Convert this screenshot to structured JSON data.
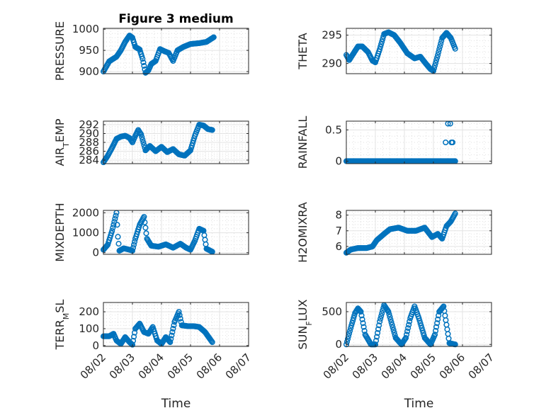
{
  "figure_title": "Figure 3 medium",
  "chart_data": [
    {
      "type": "scatter",
      "title": "Figure 3 medium",
      "ylabel_parts": [
        {
          "text": "PRESSURE",
          "sub": false
        }
      ],
      "xlabel": "",
      "xlim": [
        0,
        5
      ],
      "ylim": [
        895,
        1002
      ],
      "yticks": [
        900,
        950,
        1000
      ],
      "yticklabels": [
        "900",
        "950",
        "1000"
      ],
      "xticks": [
        0,
        1,
        2,
        3,
        4,
        5
      ],
      "xticklabels": [],
      "grid": true,
      "color": "#0072BD",
      "marker": "circle",
      "keyframes": [
        [
          0.0,
          900
        ],
        [
          0.1,
          912
        ],
        [
          0.2,
          924
        ],
        [
          0.45,
          935
        ],
        [
          0.6,
          950
        ],
        [
          0.75,
          970
        ],
        [
          0.9,
          985
        ],
        [
          1.0,
          980
        ],
        [
          1.1,
          958
        ],
        [
          1.25,
          952
        ],
        [
          1.35,
          930
        ],
        [
          1.45,
          897
        ],
        [
          1.55,
          903
        ],
        [
          1.65,
          918
        ],
        [
          1.8,
          925
        ],
        [
          1.95,
          953
        ],
        [
          2.1,
          948
        ],
        [
          2.25,
          944
        ],
        [
          2.4,
          925
        ],
        [
          2.55,
          950
        ],
        [
          2.75,
          958
        ],
        [
          3.0,
          965
        ],
        [
          3.3,
          967
        ],
        [
          3.55,
          970
        ],
        [
          3.8,
          981
        ]
      ]
    },
    {
      "type": "scatter",
      "title": "",
      "ylabel_parts": [
        {
          "text": "THETA",
          "sub": false
        }
      ],
      "xlabel": "",
      "xlim": [
        0,
        5
      ],
      "ylim": [
        288.2,
        296.2
      ],
      "yticks": [
        290,
        295
      ],
      "yticklabels": [
        "290",
        "295"
      ],
      "xticks": [
        0,
        1,
        2,
        3,
        4,
        5
      ],
      "xticklabels": [],
      "grid": true,
      "color": "#0072BD",
      "marker": "circle",
      "keyframes": [
        [
          0.0,
          291.5
        ],
        [
          0.1,
          290.6
        ],
        [
          0.25,
          291.8
        ],
        [
          0.4,
          293.0
        ],
        [
          0.55,
          293.0
        ],
        [
          0.75,
          292.0
        ],
        [
          0.9,
          290.5
        ],
        [
          1.0,
          290.2
        ],
        [
          1.15,
          292.5
        ],
        [
          1.3,
          295.2
        ],
        [
          1.45,
          295.5
        ],
        [
          1.65,
          295.0
        ],
        [
          1.85,
          293.7
        ],
        [
          2.1,
          291.8
        ],
        [
          2.35,
          290.9
        ],
        [
          2.55,
          291.2
        ],
        [
          2.75,
          289.9
        ],
        [
          2.9,
          289.0
        ],
        [
          3.0,
          288.7
        ],
        [
          3.15,
          291.5
        ],
        [
          3.3,
          294.5
        ],
        [
          3.45,
          295.4
        ],
        [
          3.6,
          294.5
        ],
        [
          3.75,
          292.6
        ]
      ]
    },
    {
      "type": "scatter",
      "title": "",
      "ylabel_parts": [
        {
          "text": "AIR",
          "sub": false
        },
        {
          "text": "T",
          "sub": true
        },
        {
          "text": "EMP",
          "sub": false
        }
      ],
      "xlabel": "",
      "xlim": [
        0,
        5
      ],
      "ylim": [
        283.2,
        292.8
      ],
      "yticks": [
        284,
        286,
        288,
        290,
        292
      ],
      "yticklabels": [
        "284",
        "286",
        "288",
        "290",
        "292"
      ],
      "xticks": [
        0,
        1,
        2,
        3,
        4,
        5
      ],
      "xticklabels": [],
      "grid": true,
      "color": "#0072BD",
      "marker": "circle",
      "keyframes": [
        [
          0.0,
          283.5
        ],
        [
          0.15,
          285.0
        ],
        [
          0.3,
          286.8
        ],
        [
          0.45,
          288.8
        ],
        [
          0.6,
          289.3
        ],
        [
          0.75,
          289.5
        ],
        [
          0.9,
          289.0
        ],
        [
          1.0,
          288.0
        ],
        [
          1.1,
          289.5
        ],
        [
          1.2,
          290.8
        ],
        [
          1.3,
          289.8
        ],
        [
          1.45,
          286.2
        ],
        [
          1.6,
          287.2
        ],
        [
          1.8,
          286.0
        ],
        [
          2.0,
          287.0
        ],
        [
          2.2,
          285.8
        ],
        [
          2.4,
          286.5
        ],
        [
          2.6,
          285.3
        ],
        [
          2.8,
          285.0
        ],
        [
          3.0,
          286.2
        ],
        [
          3.15,
          289.5
        ],
        [
          3.3,
          292.0
        ],
        [
          3.45,
          291.8
        ],
        [
          3.6,
          291.0
        ],
        [
          3.75,
          290.8
        ]
      ]
    },
    {
      "type": "scatter",
      "title": "",
      "ylabel_parts": [
        {
          "text": "RAINFALL",
          "sub": false
        }
      ],
      "xlabel": "",
      "xlim": [
        0,
        5
      ],
      "ylim": [
        -0.04,
        0.64
      ],
      "yticks": [
        0,
        0.5
      ],
      "yticklabels": [
        "0",
        "0.5"
      ],
      "xticks": [
        0,
        1,
        2,
        3,
        4,
        5
      ],
      "xticklabels": [],
      "grid": true,
      "color": "#0072BD",
      "marker": "circle",
      "keyframes": [
        [
          0.0,
          0.0
        ],
        [
          3.75,
          0.0
        ]
      ],
      "extra_points": [
        [
          3.42,
          0.3
        ],
        [
          3.5,
          0.6
        ],
        [
          3.58,
          0.6
        ],
        [
          3.62,
          0.3
        ],
        [
          3.66,
          0.3
        ]
      ]
    },
    {
      "type": "scatter",
      "title": "",
      "ylabel_parts": [
        {
          "text": "MIXDEPTH",
          "sub": false
        }
      ],
      "xlabel": "",
      "xlim": [
        0,
        5
      ],
      "ylim": [
        -80,
        2120
      ],
      "yticks": [
        0,
        1000,
        2000
      ],
      "yticklabels": [
        "0",
        "1000",
        "2000"
      ],
      "xticks": [
        0,
        1,
        2,
        3,
        4,
        5
      ],
      "xticklabels": [],
      "grid": true,
      "color": "#0072BD",
      "marker": "circle",
      "keyframes": [
        [
          0.0,
          150
        ],
        [
          0.15,
          400
        ],
        [
          0.3,
          1100
        ],
        [
          0.4,
          1700
        ],
        [
          0.45,
          2000
        ],
        [
          0.5,
          800
        ],
        [
          0.55,
          100
        ],
        [
          0.7,
          220
        ],
        [
          0.9,
          150
        ],
        [
          1.0,
          100
        ],
        [
          1.1,
          700
        ],
        [
          1.25,
          1400
        ],
        [
          1.4,
          1800
        ],
        [
          1.5,
          700
        ],
        [
          1.65,
          350
        ],
        [
          1.9,
          300
        ],
        [
          2.15,
          420
        ],
        [
          2.4,
          250
        ],
        [
          2.65,
          450
        ],
        [
          2.85,
          250
        ],
        [
          3.0,
          150
        ],
        [
          3.15,
          600
        ],
        [
          3.3,
          1200
        ],
        [
          3.45,
          1100
        ],
        [
          3.55,
          200
        ],
        [
          3.75,
          50
        ]
      ]
    },
    {
      "type": "scatter",
      "title": "",
      "ylabel_parts": [
        {
          "text": "H2OMIXRA",
          "sub": false
        }
      ],
      "xlabel": "",
      "xlim": [
        0,
        5
      ],
      "ylim": [
        5.5,
        8.3
      ],
      "yticks": [
        6,
        7,
        8
      ],
      "yticklabels": [
        "6",
        "7",
        "8"
      ],
      "xticks": [
        0,
        1,
        2,
        3,
        4,
        5
      ],
      "xticklabels": [],
      "grid": true,
      "color": "#0072BD",
      "marker": "circle",
      "keyframes": [
        [
          0.0,
          5.6
        ],
        [
          0.15,
          5.8
        ],
        [
          0.4,
          5.9
        ],
        [
          0.7,
          5.9
        ],
        [
          0.9,
          6.0
        ],
        [
          1.05,
          6.4
        ],
        [
          1.3,
          6.8
        ],
        [
          1.5,
          7.1
        ],
        [
          1.8,
          7.2
        ],
        [
          2.1,
          7.0
        ],
        [
          2.4,
          7.0
        ],
        [
          2.7,
          7.2
        ],
        [
          2.95,
          6.6
        ],
        [
          3.15,
          6.8
        ],
        [
          3.3,
          6.5
        ],
        [
          3.45,
          7.3
        ],
        [
          3.6,
          7.6
        ],
        [
          3.75,
          8.1
        ]
      ]
    },
    {
      "type": "scatter",
      "title": "",
      "ylabel_parts": [
        {
          "text": "TERR",
          "sub": false
        },
        {
          "text": "M",
          "sub": true
        },
        {
          "text": "SL",
          "sub": false
        }
      ],
      "xlabel": "Time",
      "xlim": [
        0,
        5
      ],
      "ylim": [
        -5,
        255
      ],
      "yticks": [
        0,
        100,
        200
      ],
      "yticklabels": [
        "0",
        "100",
        "200"
      ],
      "xticks": [
        0,
        1,
        2,
        3,
        4,
        5
      ],
      "xticklabels": [
        "08/02",
        "08/03",
        "08/04",
        "08/05",
        "08/06",
        "08/07"
      ],
      "grid": true,
      "color": "#0072BD",
      "marker": "circle",
      "keyframes": [
        [
          0.0,
          55
        ],
        [
          0.2,
          55
        ],
        [
          0.35,
          70
        ],
        [
          0.45,
          30
        ],
        [
          0.6,
          10
        ],
        [
          0.75,
          50
        ],
        [
          0.9,
          20
        ],
        [
          1.0,
          5
        ],
        [
          1.1,
          100
        ],
        [
          1.25,
          130
        ],
        [
          1.4,
          80
        ],
        [
          1.55,
          70
        ],
        [
          1.7,
          110
        ],
        [
          1.85,
          30
        ],
        [
          2.0,
          10
        ],
        [
          2.15,
          50
        ],
        [
          2.3,
          20
        ],
        [
          2.45,
          140
        ],
        [
          2.6,
          200
        ],
        [
          2.7,
          120
        ],
        [
          2.9,
          115
        ],
        [
          3.1,
          115
        ],
        [
          3.3,
          110
        ],
        [
          3.5,
          80
        ],
        [
          3.75,
          20
        ]
      ]
    },
    {
      "type": "scatter",
      "title": "",
      "ylabel_parts": [
        {
          "text": "SUN",
          "sub": false
        },
        {
          "text": "F",
          "sub": true
        },
        {
          "text": "LUX",
          "sub": false
        }
      ],
      "xlabel": "Time",
      "xlim": [
        0,
        5
      ],
      "ylim": [
        -30,
        640
      ],
      "yticks": [
        0,
        500
      ],
      "yticklabels": [
        "0",
        "500"
      ],
      "xticks": [
        0,
        1,
        2,
        3,
        4,
        5
      ],
      "xticklabels": [
        "08/02",
        "08/03",
        "08/04",
        "08/05",
        "08/06",
        "08/07"
      ],
      "grid": true,
      "color": "#0072BD",
      "marker": "circle",
      "keyframes": [
        [
          0.0,
          0
        ],
        [
          0.15,
          250
        ],
        [
          0.3,
          480
        ],
        [
          0.4,
          550
        ],
        [
          0.5,
          500
        ],
        [
          0.65,
          150
        ],
        [
          0.85,
          0
        ],
        [
          1.0,
          0
        ],
        [
          1.15,
          350
        ],
        [
          1.3,
          600
        ],
        [
          1.45,
          500
        ],
        [
          1.7,
          100
        ],
        [
          1.9,
          0
        ],
        [
          2.05,
          100
        ],
        [
          2.2,
          400
        ],
        [
          2.35,
          580
        ],
        [
          2.5,
          400
        ],
        [
          2.7,
          100
        ],
        [
          2.9,
          0
        ],
        [
          3.05,
          150
        ],
        [
          3.2,
          500
        ],
        [
          3.35,
          580
        ],
        [
          3.45,
          300
        ],
        [
          3.55,
          20
        ],
        [
          3.75,
          0
        ]
      ]
    }
  ]
}
